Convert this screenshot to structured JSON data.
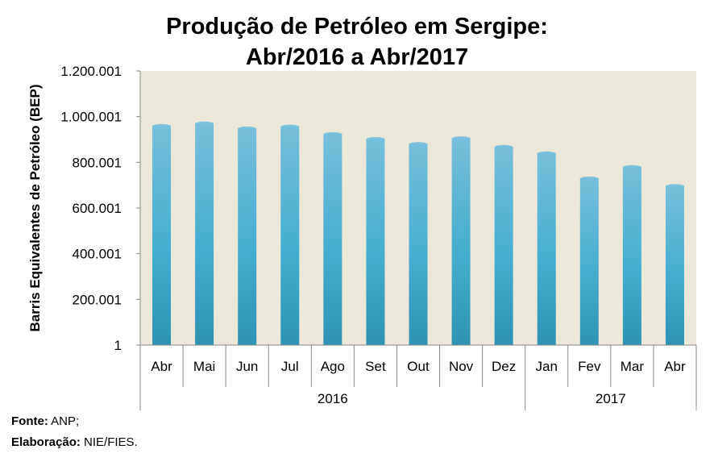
{
  "chart_data": {
    "type": "bar",
    "title_line1": "Produção de Petróleo em Sergipe:",
    "title_line2": "Abr/2016 a Abr/2017",
    "ylabel": "Barris Equivalentes de Petróleo (BEP)",
    "categories": [
      "Abr",
      "Mai",
      "Jun",
      "Jul",
      "Ago",
      "Set",
      "Out",
      "Nov",
      "Dez",
      "Jan",
      "Fev",
      "Mar",
      "Abr"
    ],
    "year_groups": [
      {
        "label": "2016",
        "start": 0,
        "end": 8
      },
      {
        "label": "2017",
        "start": 9,
        "end": 12
      }
    ],
    "values": [
      961000,
      972000,
      950000,
      958000,
      925000,
      904000,
      882000,
      907000,
      869000,
      841000,
      731000,
      781000,
      698000
    ],
    "ylim": [
      1,
      1200001
    ],
    "yticks": [
      1,
      200001,
      400001,
      600001,
      800001,
      1000001,
      1200001
    ],
    "ytick_labels": [
      "1",
      "200.001",
      "400.001",
      "600.001",
      "800.001",
      "1.000.001",
      "1.200.001"
    ],
    "grid": false,
    "colors": {
      "plot_bg": "#ebe8d9",
      "bar_top": "#77bfda",
      "bar_mid": "#46aed0",
      "bar_bottom": "#2e93b3"
    }
  },
  "source": {
    "label": "Fonte:",
    "value": "ANP;"
  },
  "elaboration": {
    "label": "Elaboração:",
    "value": "NIE/FIES."
  }
}
